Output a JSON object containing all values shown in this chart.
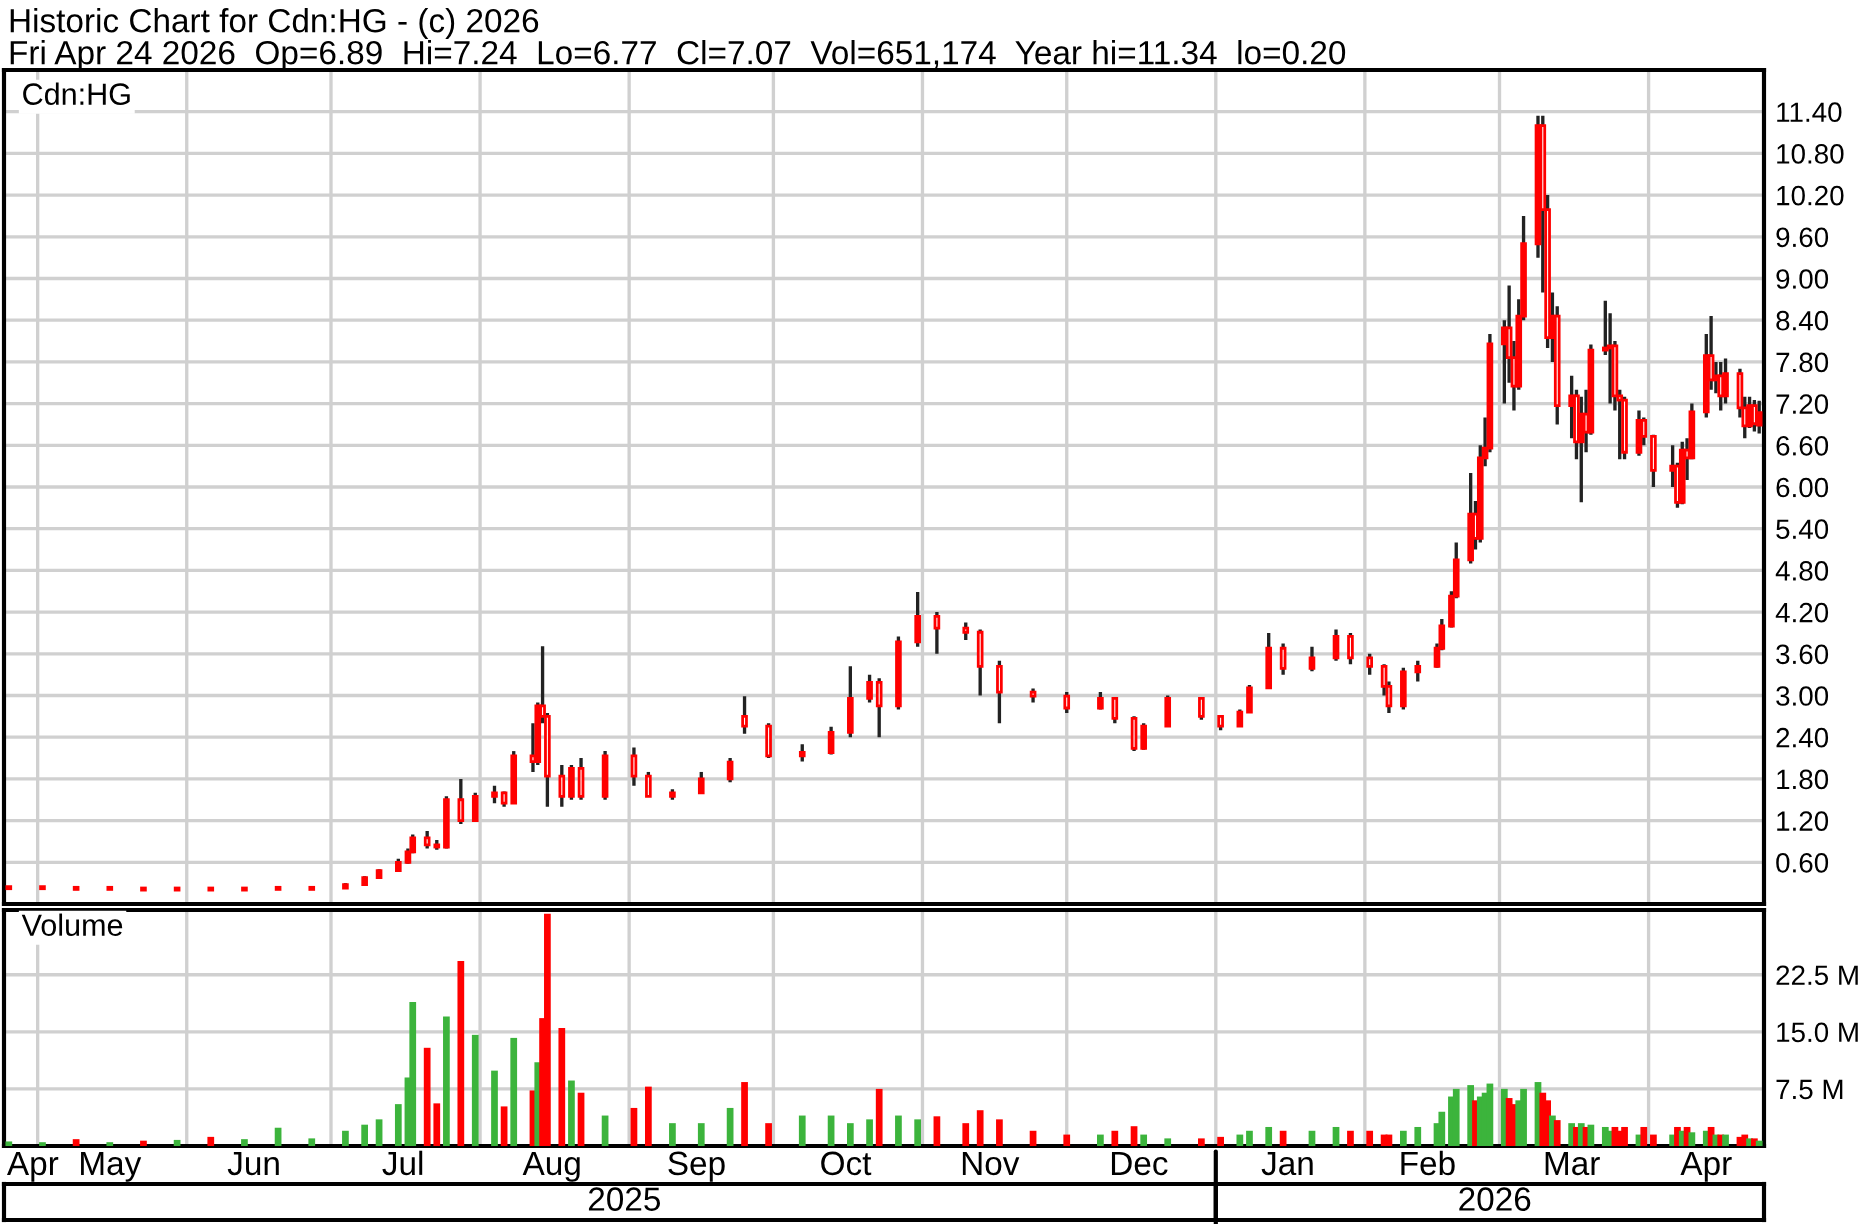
{
  "chart_data": [
    {
      "type": "candlestick",
      "title": "Historic Chart for Cdn:HG - (c) 2026",
      "subtitle": "Fri Apr 24 2026  Op=6.89  Hi=7.24  Lo=6.77  Cl=7.07  Vol=651,174  Year hi=11.34  lo=0.20",
      "annotations": [
        "Cdn:HG"
      ],
      "color": "#222222",
      "colors": [
        "#ff0000",
        "#ff0000",
        "#ff0000",
        "#ff0000",
        "#ff0000",
        "#ff0000",
        "#ff0000",
        "#ff0000",
        "#ff0000",
        "#ff0000",
        "#ff0000",
        "#ff0000",
        "#ff0000",
        "#ff0000",
        "#ff0000",
        "#ff0000",
        "#ff0000",
        "#ff0000",
        "#ff0000",
        "#ff0000",
        "#ff0000",
        "#ff0000",
        "#ff0000",
        "#ff0000",
        "#ff0000",
        "#ff0000",
        "#ff0000",
        "#ff0000",
        "#ff0000",
        "#ff0000",
        "#ff0000",
        "#ff0000",
        "#ff0000",
        "#ff0000",
        "#ff0000",
        "#ff0000",
        "#ff0000",
        "#ff0000",
        "#ff0000",
        "#ff0000",
        "#ff0000",
        "#ff0000",
        "#ff0000",
        "#ff0000",
        "#ff0000",
        "#ff0000",
        "#ff0000",
        "#ff0000",
        "#ff0000",
        "#ff0000",
        "#ff0000",
        "#ff0000",
        "#ff0000",
        "#ff0000",
        "#ff0000",
        "#ff0000",
        "#ff0000",
        "#ff0000",
        "#ff0000",
        "#ff0000",
        "#ff0000",
        "#ff0000",
        "#ff0000",
        "#ff0000",
        "#ff0000",
        "#ff0000",
        "#ff0000",
        "#ff0000",
        "#ff0000",
        "#ff0000",
        "#ff0000",
        "#ff0000",
        "#ff0000",
        "#ff0000",
        "#ff0000",
        "#ff0000",
        "#ff0000",
        "#ff0000",
        "#ff0000",
        "#ff0000",
        "#ff0000",
        "#ff0000",
        "#ff0000",
        "#ff0000",
        "#ff0000",
        "#ff0000",
        "#ff0000",
        "#ff0000",
        "#ff0000",
        "#ff0000",
        "#ff0000",
        "#ff0000",
        "#ff0000",
        "#ff0000",
        "#ff0000",
        "#ff0000",
        "#ff0000",
        "#ff0000",
        "#ff0000",
        "#ff0000",
        "#ff0000",
        "#ff0000",
        "#ff0000",
        "#ff0000",
        "#ff0000",
        "#ff0000",
        "#ff0000",
        "#ff0000",
        "#ff0000",
        "#ff0000",
        "#ff0000",
        "#ff0000",
        "#ff0000",
        "#ff0000",
        "#ff0000",
        "#ff0000",
        "#ff0000",
        "#ff0000"
      ],
      "x": [
        "2025-04-25",
        "2025-05-02",
        "2025-05-09",
        "2025-05-16",
        "2025-05-23",
        "2025-05-30",
        "2025-06-06",
        "2025-06-13",
        "2025-06-20",
        "2025-06-27",
        "2025-07-04",
        "2025-07-08",
        "2025-07-11",
        "2025-07-15",
        "2025-07-17",
        "2025-07-18",
        "2025-07-21",
        "2025-07-23",
        "2025-07-25",
        "2025-07-28",
        "2025-07-31",
        "2025-08-04",
        "2025-08-06",
        "2025-08-08",
        "2025-08-12",
        "2025-08-13",
        "2025-08-14",
        "2025-08-15",
        "2025-08-18",
        "2025-08-20",
        "2025-08-22",
        "2025-08-27",
        "2025-09-02",
        "2025-09-05",
        "2025-09-10",
        "2025-09-16",
        "2025-09-22",
        "2025-09-25",
        "2025-09-30",
        "2025-10-07",
        "2025-10-13",
        "2025-10-17",
        "2025-10-21",
        "2025-10-23",
        "2025-10-27",
        "2025-10-31",
        "2025-11-04",
        "2025-11-10",
        "2025-11-13",
        "2025-11-17",
        "2025-11-24",
        "2025-12-01",
        "2025-12-08",
        "2025-12-11",
        "2025-12-15",
        "2025-12-17",
        "2025-12-22",
        "2025-12-29",
        "2026-01-02",
        "2026-01-06",
        "2026-01-08",
        "2026-01-12",
        "2026-01-15",
        "2026-01-21",
        "2026-01-26",
        "2026-01-29",
        "2026-02-02",
        "2026-02-05",
        "2026-02-06",
        "2026-02-09",
        "2026-02-12",
        "2026-02-16",
        "2026-02-17",
        "2026-02-19",
        "2026-02-20",
        "2026-02-23",
        "2026-02-24",
        "2026-02-25",
        "2026-02-26",
        "2026-02-27",
        "2026-03-02",
        "2026-03-03",
        "2026-03-04",
        "2026-03-05",
        "2026-03-06",
        "2026-03-09",
        "2026-03-10",
        "2026-03-11",
        "2026-03-12",
        "2026-03-13",
        "2026-03-16",
        "2026-03-17",
        "2026-03-18",
        "2026-03-19",
        "2026-03-20",
        "2026-03-23",
        "2026-03-24",
        "2026-03-25",
        "2026-03-26",
        "2026-03-27",
        "2026-03-30",
        "2026-03-31",
        "2026-04-02",
        "2026-04-06",
        "2026-04-07",
        "2026-04-08",
        "2026-04-09",
        "2026-04-10",
        "2026-04-13",
        "2026-04-14",
        "2026-04-15",
        "2026-04-16",
        "2026-04-17",
        "2026-04-20",
        "2026-04-21",
        "2026-04-22",
        "2026-04-23",
        "2026-04-24"
      ],
      "ohlc": [
        [
          0.22,
          0.23,
          0.21,
          0.22
        ],
        [
          0.22,
          0.23,
          0.21,
          0.22
        ],
        [
          0.22,
          0.22,
          0.2,
          0.21
        ],
        [
          0.21,
          0.22,
          0.2,
          0.21
        ],
        [
          0.21,
          0.22,
          0.2,
          0.2
        ],
        [
          0.2,
          0.21,
          0.2,
          0.21
        ],
        [
          0.21,
          0.21,
          0.2,
          0.2
        ],
        [
          0.2,
          0.21,
          0.2,
          0.21
        ],
        [
          0.21,
          0.22,
          0.2,
          0.21
        ],
        [
          0.21,
          0.24,
          0.21,
          0.23
        ],
        [
          0.23,
          0.3,
          0.23,
          0.28
        ],
        [
          0.28,
          0.4,
          0.28,
          0.38
        ],
        [
          0.38,
          0.5,
          0.37,
          0.48
        ],
        [
          0.48,
          0.65,
          0.47,
          0.6
        ],
        [
          0.6,
          0.8,
          0.58,
          0.75
        ],
        [
          0.75,
          1.0,
          0.73,
          0.95
        ],
        [
          0.95,
          1.05,
          0.8,
          0.85
        ],
        [
          0.85,
          0.92,
          0.78,
          0.82
        ],
        [
          0.82,
          1.55,
          0.8,
          1.5
        ],
        [
          1.5,
          1.8,
          1.15,
          1.2
        ],
        [
          1.2,
          1.6,
          1.18,
          1.55
        ],
        [
          1.55,
          1.7,
          1.45,
          1.6
        ],
        [
          1.6,
          1.62,
          1.4,
          1.45
        ],
        [
          1.45,
          2.2,
          1.45,
          2.13
        ],
        [
          2.13,
          2.6,
          1.9,
          2.05
        ],
        [
          2.05,
          2.9,
          2.0,
          2.85
        ],
        [
          2.85,
          3.71,
          2.6,
          2.7
        ],
        [
          2.7,
          2.75,
          1.4,
          1.84
        ],
        [
          1.84,
          2.0,
          1.4,
          1.55
        ],
        [
          1.55,
          2.0,
          1.5,
          1.95
        ],
        [
          1.95,
          2.1,
          1.5,
          1.55
        ],
        [
          1.55,
          2.2,
          1.5,
          2.13
        ],
        [
          2.13,
          2.25,
          1.7,
          1.84
        ],
        [
          1.84,
          1.9,
          1.55,
          1.55
        ],
        [
          1.55,
          1.65,
          1.5,
          1.6
        ],
        [
          1.6,
          1.9,
          1.6,
          1.8
        ],
        [
          1.8,
          2.1,
          1.75,
          2.04
        ],
        [
          2.7,
          2.99,
          2.45,
          2.56
        ],
        [
          2.56,
          2.6,
          2.1,
          2.13
        ],
        [
          2.13,
          2.3,
          2.05,
          2.18
        ],
        [
          2.18,
          2.55,
          2.15,
          2.47
        ],
        [
          2.47,
          3.42,
          2.4,
          2.96
        ],
        [
          2.96,
          3.3,
          2.9,
          3.19
        ],
        [
          3.19,
          3.25,
          2.4,
          2.85
        ],
        [
          2.85,
          3.85,
          2.8,
          3.77
        ],
        [
          3.77,
          4.49,
          3.7,
          4.14
        ],
        [
          4.14,
          4.2,
          3.6,
          3.97
        ],
        [
          3.97,
          4.05,
          3.8,
          3.91
        ],
        [
          3.91,
          3.95,
          3.0,
          3.42
        ],
        [
          3.42,
          3.5,
          2.6,
          3.05
        ],
        [
          3.05,
          3.1,
          2.9,
          2.99
        ],
        [
          2.99,
          3.05,
          2.75,
          2.82
        ],
        [
          2.82,
          3.05,
          2.8,
          2.96
        ],
        [
          2.96,
          2.98,
          2.6,
          2.67
        ],
        [
          2.67,
          2.7,
          2.2,
          2.24
        ],
        [
          2.24,
          2.6,
          2.22,
          2.56
        ],
        [
          2.56,
          3.0,
          2.55,
          2.96
        ],
        [
          2.96,
          2.98,
          2.65,
          2.7
        ],
        [
          2.7,
          2.72,
          2.5,
          2.56
        ],
        [
          2.56,
          2.8,
          2.55,
          2.76
        ],
        [
          2.76,
          3.15,
          2.75,
          3.11
        ],
        [
          3.11,
          3.9,
          3.1,
          3.68
        ],
        [
          3.68,
          3.75,
          3.3,
          3.39
        ],
        [
          3.39,
          3.7,
          3.35,
          3.54
        ],
        [
          3.54,
          3.95,
          3.5,
          3.85
        ],
        [
          3.85,
          3.9,
          3.45,
          3.54
        ],
        [
          3.54,
          3.6,
          3.3,
          3.42
        ],
        [
          3.42,
          3.45,
          3.0,
          3.13
        ],
        [
          3.13,
          3.2,
          2.75,
          2.85
        ],
        [
          2.85,
          3.4,
          2.8,
          3.34
        ],
        [
          3.34,
          3.5,
          3.2,
          3.42
        ],
        [
          3.42,
          3.75,
          3.4,
          3.68
        ],
        [
          3.68,
          4.1,
          3.65,
          4.0
        ],
        [
          4.0,
          4.5,
          3.98,
          4.43
        ],
        [
          4.43,
          5.2,
          4.4,
          4.95
        ],
        [
          4.95,
          6.2,
          4.9,
          5.61
        ],
        [
          5.61,
          5.8,
          5.1,
          5.26
        ],
        [
          5.26,
          6.6,
          5.2,
          6.42
        ],
        [
          6.42,
          7.0,
          6.3,
          6.56
        ],
        [
          6.56,
          8.2,
          6.5,
          8.06
        ],
        [
          8.06,
          8.4,
          7.2,
          8.29
        ],
        [
          8.29,
          8.9,
          7.5,
          7.86
        ],
        [
          7.86,
          8.1,
          7.1,
          7.45
        ],
        [
          7.45,
          8.7,
          7.4,
          8.46
        ],
        [
          8.46,
          9.9,
          8.4,
          9.5
        ],
        [
          9.5,
          11.34,
          9.3,
          11.2
        ],
        [
          11.2,
          11.34,
          8.8,
          9.99
        ],
        [
          9.99,
          10.2,
          8.0,
          8.15
        ],
        [
          8.15,
          8.8,
          7.8,
          8.46
        ],
        [
          8.46,
          8.6,
          6.9,
          7.17
        ],
        [
          7.17,
          7.6,
          6.7,
          7.31
        ],
        [
          7.31,
          7.4,
          6.4,
          6.65
        ],
        [
          6.65,
          7.3,
          5.78,
          7.05
        ],
        [
          7.05,
          7.4,
          6.5,
          6.79
        ],
        [
          6.79,
          8.05,
          6.75,
          7.97
        ],
        [
          7.97,
          8.68,
          7.9,
          8.0
        ],
        [
          8.0,
          8.5,
          7.2,
          8.03
        ],
        [
          8.03,
          8.1,
          7.1,
          7.31
        ],
        [
          7.31,
          7.4,
          6.4,
          7.25
        ],
        [
          7.25,
          7.3,
          6.4,
          6.5
        ],
        [
          6.5,
          7.1,
          6.45,
          6.96
        ],
        [
          6.96,
          7.0,
          6.6,
          6.73
        ],
        [
          6.73,
          6.75,
          6.0,
          6.24
        ],
        [
          6.24,
          6.6,
          6.0,
          6.3
        ],
        [
          6.3,
          6.35,
          5.7,
          5.78
        ],
        [
          5.78,
          6.65,
          5.75,
          6.53
        ],
        [
          6.53,
          6.7,
          6.1,
          6.42
        ],
        [
          6.42,
          7.2,
          6.4,
          7.08
        ],
        [
          7.08,
          8.2,
          7.0,
          7.89
        ],
        [
          7.89,
          8.46,
          7.4,
          7.54
        ],
        [
          7.54,
          7.8,
          7.35,
          7.6
        ],
        [
          7.6,
          7.8,
          7.1,
          7.31
        ],
        [
          7.31,
          7.85,
          7.2,
          7.63
        ],
        [
          7.63,
          7.7,
          7.0,
          7.14
        ],
        [
          7.14,
          7.3,
          6.7,
          6.88
        ],
        [
          6.88,
          7.3,
          6.85,
          7.17
        ],
        [
          7.17,
          7.25,
          6.8,
          6.91
        ],
        [
          6.89,
          7.24,
          6.77,
          7.07
        ]
      ],
      "xlim": [
        "2025-04-24",
        "2026-04-25"
      ],
      "ylim": [
        0,
        12
      ],
      "yticks": [
        {
          "value": 0.6,
          "label": "0.60"
        },
        {
          "value": 1.2,
          "label": "1.20"
        },
        {
          "value": 1.8,
          "label": "1.80"
        },
        {
          "value": 2.4,
          "label": "2.40"
        },
        {
          "value": 3.0,
          "label": "3.00"
        },
        {
          "value": 3.6,
          "label": "3.60"
        },
        {
          "value": 4.2,
          "label": "4.20"
        },
        {
          "value": 4.8,
          "label": "4.80"
        },
        {
          "value": 5.4,
          "label": "5.40"
        },
        {
          "value": 6.0,
          "label": "6.00"
        },
        {
          "value": 6.6,
          "label": "6.60"
        },
        {
          "value": 7.2,
          "label": "7.20"
        },
        {
          "value": 7.8,
          "label": "7.80"
        },
        {
          "value": 8.4,
          "label": "8.40"
        },
        {
          "value": 9.0,
          "label": "9.00"
        },
        {
          "value": 9.6,
          "label": "9.60"
        },
        {
          "value": 10.2,
          "label": "10.20"
        },
        {
          "value": 10.8,
          "label": "10.80"
        },
        {
          "value": 11.4,
          "label": "11.40"
        }
      ],
      "xticks": [
        {
          "value": "2025-05-01",
          "label": null
        },
        {
          "value": "2025-06-01",
          "label": null
        },
        {
          "value": "2025-07-01",
          "label": null
        },
        {
          "value": "2025-08-01",
          "label": null
        },
        {
          "value": "2025-09-01",
          "label": null
        },
        {
          "value": "2025-10-01",
          "label": null
        },
        {
          "value": "2025-11-01",
          "label": null
        },
        {
          "value": "2025-12-01",
          "label": null
        },
        {
          "value": "2026-01-01",
          "label": null
        },
        {
          "value": "2026-02-01",
          "label": null
        },
        {
          "value": "2026-03-01",
          "label": null
        },
        {
          "value": "2026-04-01",
          "label": null
        }
      ],
      "grid": true,
      "tick_labels": "y"
    },
    {
      "type": "bar",
      "annotations": [
        "Volume"
      ],
      "x": [
        "2025-04-25",
        "2025-05-02",
        "2025-05-09",
        "2025-05-16",
        "2025-05-23",
        "2025-05-30",
        "2025-06-06",
        "2025-06-13",
        "2025-06-20",
        "2025-06-27",
        "2025-07-04",
        "2025-07-08",
        "2025-07-11",
        "2025-07-15",
        "2025-07-17",
        "2025-07-18",
        "2025-07-21",
        "2025-07-23",
        "2025-07-25",
        "2025-07-28",
        "2025-07-31",
        "2025-08-04",
        "2025-08-06",
        "2025-08-08",
        "2025-08-12",
        "2025-08-13",
        "2025-08-14",
        "2025-08-15",
        "2025-08-18",
        "2025-08-20",
        "2025-08-22",
        "2025-08-27",
        "2025-09-02",
        "2025-09-05",
        "2025-09-10",
        "2025-09-16",
        "2025-09-22",
        "2025-09-25",
        "2025-09-30",
        "2025-10-07",
        "2025-10-13",
        "2025-10-17",
        "2025-10-21",
        "2025-10-23",
        "2025-10-27",
        "2025-10-31",
        "2025-11-04",
        "2025-11-10",
        "2025-11-13",
        "2025-11-17",
        "2025-11-24",
        "2025-12-01",
        "2025-12-08",
        "2025-12-11",
        "2025-12-15",
        "2025-12-17",
        "2025-12-22",
        "2025-12-29",
        "2026-01-02",
        "2026-01-06",
        "2026-01-08",
        "2026-01-12",
        "2026-01-15",
        "2026-01-21",
        "2026-01-26",
        "2026-01-29",
        "2026-02-02",
        "2026-02-05",
        "2026-02-06",
        "2026-02-09",
        "2026-02-12",
        "2026-02-16",
        "2026-02-17",
        "2026-02-19",
        "2026-02-20",
        "2026-02-23",
        "2026-02-24",
        "2026-02-25",
        "2026-02-26",
        "2026-02-27",
        "2026-03-02",
        "2026-03-03",
        "2026-03-04",
        "2026-03-05",
        "2026-03-06",
        "2026-03-09",
        "2026-03-10",
        "2026-03-11",
        "2026-03-12",
        "2026-03-13",
        "2026-03-16",
        "2026-03-17",
        "2026-03-18",
        "2026-03-19",
        "2026-03-20",
        "2026-03-23",
        "2026-03-24",
        "2026-03-25",
        "2026-03-26",
        "2026-03-27",
        "2026-03-30",
        "2026-03-31",
        "2026-04-02",
        "2026-04-06",
        "2026-04-07",
        "2026-04-08",
        "2026-04-09",
        "2026-04-10",
        "2026-04-13",
        "2026-04-14",
        "2026-04-15",
        "2026-04-16",
        "2026-04-17",
        "2026-04-20",
        "2026-04-21",
        "2026-04-22",
        "2026-04-23",
        "2026-04-24"
      ],
      "values": [
        0.6,
        0.5,
        0.9,
        0.5,
        0.7,
        0.8,
        1.2,
        0.9,
        2.4,
        1.0,
        2.0,
        2.8,
        3.5,
        5.5,
        9.0,
        18.9,
        12.9,
        5.6,
        17.0,
        24.3,
        14.6,
        9.9,
        5.2,
        14.2,
        7.3,
        11.0,
        16.8,
        30.5,
        15.5,
        8.6,
        7.0,
        4.0,
        5.0,
        7.8,
        3.0,
        3.0,
        5.0,
        8.4,
        3.0,
        4.0,
        4.0,
        3.0,
        3.5,
        7.5,
        4.0,
        3.5,
        3.9,
        3.0,
        4.7,
        3.5,
        2.0,
        1.5,
        1.5,
        2.0,
        2.6,
        1.5,
        1.0,
        1.0,
        1.2,
        1.5,
        2.0,
        2.5,
        2.0,
        2.0,
        2.5,
        2.0,
        2.0,
        1.5,
        1.5,
        2.0,
        2.5,
        3.0,
        4.5,
        6.5,
        7.5,
        8.0,
        6.0,
        6.5,
        7.0,
        8.2,
        7.5,
        6.3,
        5.5,
        6.0,
        7.5,
        8.4,
        7.0,
        6.0,
        4.0,
        3.4,
        3.0,
        2.5,
        3.0,
        2.5,
        2.8,
        2.5,
        2.0,
        2.5,
        2.0,
        2.5,
        1.5,
        2.5,
        1.5,
        1.5,
        2.5,
        2.0,
        2.5,
        1.8,
        2.0,
        2.5,
        1.5,
        1.5,
        1.5,
        1.2,
        1.5,
        1.0,
        1.0,
        0.7
      ],
      "colors": [
        "#3cb43c",
        "#3cb43c",
        "#ff0000",
        "#3cb43c",
        "#ff0000",
        "#3cb43c",
        "#ff0000",
        "#3cb43c",
        "#3cb43c",
        "#3cb43c",
        "#3cb43c",
        "#3cb43c",
        "#3cb43c",
        "#3cb43c",
        "#3cb43c",
        "#3cb43c",
        "#ff0000",
        "#ff0000",
        "#3cb43c",
        "#ff0000",
        "#3cb43c",
        "#3cb43c",
        "#ff0000",
        "#3cb43c",
        "#ff0000",
        "#3cb43c",
        "#ff0000",
        "#ff0000",
        "#ff0000",
        "#3cb43c",
        "#ff0000",
        "#3cb43c",
        "#ff0000",
        "#ff0000",
        "#3cb43c",
        "#3cb43c",
        "#3cb43c",
        "#ff0000",
        "#ff0000",
        "#3cb43c",
        "#3cb43c",
        "#3cb43c",
        "#3cb43c",
        "#ff0000",
        "#3cb43c",
        "#3cb43c",
        "#ff0000",
        "#ff0000",
        "#ff0000",
        "#ff0000",
        "#ff0000",
        "#ff0000",
        "#3cb43c",
        "#ff0000",
        "#ff0000",
        "#3cb43c",
        "#3cb43c",
        "#ff0000",
        "#ff0000",
        "#3cb43c",
        "#3cb43c",
        "#3cb43c",
        "#ff0000",
        "#3cb43c",
        "#3cb43c",
        "#ff0000",
        "#ff0000",
        "#ff0000",
        "#ff0000",
        "#3cb43c",
        "#3cb43c",
        "#3cb43c",
        "#3cb43c",
        "#3cb43c",
        "#3cb43c",
        "#3cb43c",
        "#ff0000",
        "#3cb43c",
        "#3cb43c",
        "#3cb43c",
        "#3cb43c",
        "#ff0000",
        "#ff0000",
        "#3cb43c",
        "#3cb43c",
        "#3cb43c",
        "#ff0000",
        "#ff0000",
        "#3cb43c",
        "#ff0000",
        "#3cb43c",
        "#ff0000",
        "#3cb43c",
        "#ff0000",
        "#3cb43c",
        "#3cb43c",
        "#3cb43c",
        "#ff0000",
        "#ff0000",
        "#ff0000",
        "#3cb43c",
        "#ff0000",
        "#ff0000",
        "#3cb43c",
        "#ff0000",
        "#3cb43c",
        "#ff0000",
        "#3cb43c",
        "#3cb43c",
        "#ff0000",
        "#3cb43c",
        "#ff0000",
        "#3cb43c",
        "#ff0000",
        "#ff0000",
        "#3cb43c",
        "#ff0000",
        "#3cb43c"
      ],
      "xlim": [
        "2025-04-24",
        "2026-04-25"
      ],
      "ylim": [
        0,
        31
      ],
      "yticks": [
        {
          "value": 7.5,
          "label": "7.5 M"
        },
        {
          "value": 15.0,
          "label": "15.0 M"
        },
        {
          "value": 22.5,
          "label": "22.5 M"
        }
      ],
      "xticks": [
        {
          "value": "2025-04-30",
          "label": "Apr"
        },
        {
          "value": "2025-05-01",
          "label": null
        },
        {
          "value": "2025-05-16",
          "label": "May"
        },
        {
          "value": "2025-06-01",
          "label": null
        },
        {
          "value": "2025-06-15",
          "label": "Jun"
        },
        {
          "value": "2025-07-01",
          "label": null
        },
        {
          "value": "2025-07-16",
          "label": "Jul"
        },
        {
          "value": "2025-08-01",
          "label": null
        },
        {
          "value": "2025-08-16",
          "label": "Aug"
        },
        {
          "value": "2025-09-01",
          "label": null
        },
        {
          "value": "2025-09-15",
          "label": "Sep"
        },
        {
          "value": "2025-10-01",
          "label": null
        },
        {
          "value": "2025-10-16",
          "label": "Oct"
        },
        {
          "value": "2025-11-01",
          "label": null
        },
        {
          "value": "2025-11-15",
          "label": "Nov"
        },
        {
          "value": "2025-12-01",
          "label": null
        },
        {
          "value": "2025-12-16",
          "label": "Dec"
        },
        {
          "value": "2026-01-01",
          "label": null
        },
        {
          "value": "2026-01-16",
          "label": "Jan"
        },
        {
          "value": "2026-02-01",
          "label": null
        },
        {
          "value": "2026-02-14",
          "label": "Feb"
        },
        {
          "value": "2026-03-01",
          "label": null
        },
        {
          "value": "2026-03-16",
          "label": "Mar"
        },
        {
          "value": "2026-04-01",
          "label": null
        },
        {
          "value": "2026-04-13",
          "label": "Apr"
        }
      ],
      "x2lim": [
        "2025-04-24",
        "2026-04-25"
      ],
      "x2ticks": [
        {
          "value": "2025-08-31",
          "label": "2025"
        },
        {
          "value": "2026-01-01",
          "label": null
        },
        {
          "value": "2026-02-28",
          "label": "2026"
        }
      ],
      "grid": true
    }
  ]
}
